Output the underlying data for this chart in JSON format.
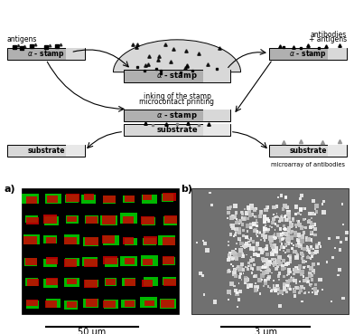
{
  "title": "",
  "fig_width": 3.92,
  "fig_height": 3.69,
  "bg_color": "#ffffff",
  "diagram": {
    "stamp_color": "#b0b0b0",
    "stamp_light": "#d8d8d8",
    "stamp_white": "#f0f0f0",
    "text_color": "#000000",
    "arrow_color": "#000000"
  },
  "panel_a": {
    "label": "a)",
    "scale_bar_text": "50 μm",
    "black_bg": "#000000",
    "green": "#00cc00",
    "red": "#cc0000"
  },
  "panel_b": {
    "label": "b)",
    "scale_bar_text": "3 μm",
    "bg_color": "#808080",
    "spot_color": "#ffffff",
    "dark_bg": "#606060"
  }
}
